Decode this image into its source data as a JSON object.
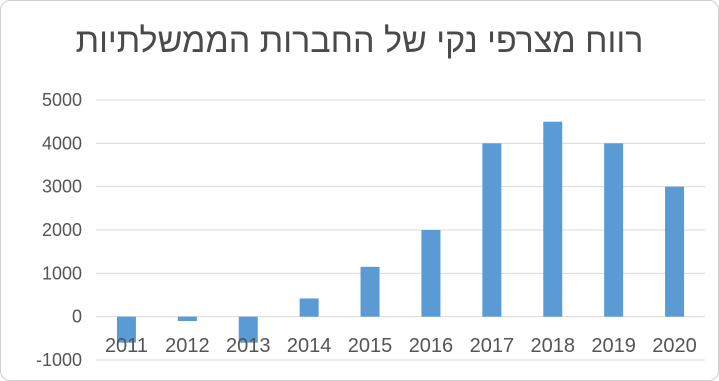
{
  "chart_data": {
    "type": "bar",
    "title": "רווח מצרפי נקי של החברות הממשלתיות",
    "categories": [
      "2011",
      "2012",
      "2013",
      "2014",
      "2015",
      "2016",
      "2017",
      "2018",
      "2019",
      "2020"
    ],
    "values": [
      -600,
      -100,
      -600,
      420,
      1150,
      2000,
      4000,
      4500,
      4000,
      3000
    ],
    "yticks": [
      -1000,
      0,
      1000,
      2000,
      3000,
      4000,
      5000
    ],
    "ylim": [
      -1000,
      5000
    ],
    "grid": true,
    "bar_color": "#5b9bd5",
    "grid_color": "#d9d9d9",
    "xlabel": "",
    "ylabel": ""
  }
}
